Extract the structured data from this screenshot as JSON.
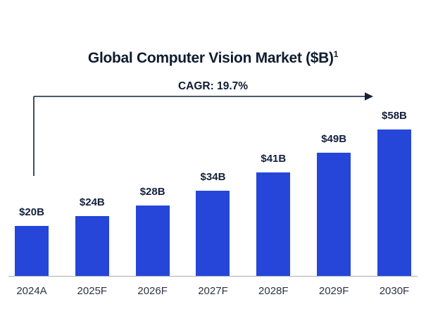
{
  "page": {
    "background": "#ffffff"
  },
  "chart_data": {
    "type": "bar",
    "title": "Global Computer Vision Market ($B)",
    "title_superscript": "1",
    "categories": [
      "2024A",
      "2025F",
      "2026F",
      "2027F",
      "2028F",
      "2029F",
      "2030F"
    ],
    "values": [
      20,
      24,
      28,
      34,
      41,
      49,
      58
    ],
    "value_labels": [
      "$20B",
      "$24B",
      "$28B",
      "$34B",
      "$41B",
      "$49B",
      "$58B"
    ],
    "annotation": {
      "label": "CAGR: 19.7%"
    },
    "bar_color": "#2546d9",
    "text_color": "#14223c",
    "axis_color": "#a6adb5",
    "xlabel": "",
    "ylabel": "",
    "ylim": [
      0,
      60
    ],
    "grid": false,
    "legend": "none"
  }
}
